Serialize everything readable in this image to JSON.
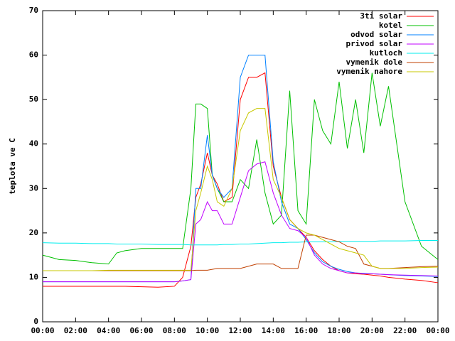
{
  "chart_data": {
    "type": "line",
    "ylabel": "teplota ve C",
    "x": [
      0,
      1,
      2,
      3,
      4,
      4.5,
      5,
      6,
      7,
      8,
      8.5,
      9,
      9.3,
      9.6,
      10,
      10.3,
      10.6,
      11,
      11.5,
      12,
      12.5,
      13,
      13.5,
      14,
      14.5,
      15,
      15.5,
      16,
      16.5,
      17,
      17.5,
      18,
      18.5,
      19,
      19.5,
      20,
      20.5,
      21,
      22,
      23,
      24
    ],
    "xlim": [
      0,
      24
    ],
    "xticks": [
      {
        "value": 0,
        "label": "00:00"
      },
      {
        "value": 2,
        "label": "02:00"
      },
      {
        "value": 4,
        "label": "04:00"
      },
      {
        "value": 6,
        "label": "06:00"
      },
      {
        "value": 8,
        "label": "08:00"
      },
      {
        "value": 10,
        "label": "10:00"
      },
      {
        "value": 12,
        "label": "12:00"
      },
      {
        "value": 14,
        "label": "14:00"
      },
      {
        "value": 16,
        "label": "16:00"
      },
      {
        "value": 18,
        "label": "18:00"
      },
      {
        "value": 20,
        "label": "20:00"
      },
      {
        "value": 22,
        "label": "22:00"
      },
      {
        "value": 24,
        "label": "00:00"
      }
    ],
    "ylim": [
      0,
      70
    ],
    "yticks": [
      0,
      10,
      20,
      30,
      40,
      50,
      60,
      70
    ],
    "legend": "top-right",
    "series": [
      {
        "name": "3ti solar",
        "color": "#ff0000",
        "values": [
          8,
          8,
          8,
          8,
          8,
          8,
          8,
          7.9,
          7.8,
          8,
          10,
          17,
          28,
          31,
          38,
          33,
          31,
          27,
          28,
          50,
          55,
          55,
          56,
          35,
          28,
          23,
          21,
          19,
          16,
          14,
          12.5,
          11.5,
          11,
          10.8,
          10.7,
          10.5,
          10.3,
          10,
          9.6,
          9.3,
          8.8
        ]
      },
      {
        "name": "kotel",
        "color": "#00c000",
        "values": [
          15,
          14,
          13.8,
          13.3,
          13,
          15.5,
          16,
          16.5,
          16.5,
          16.5,
          16.5,
          30,
          49,
          49,
          48,
          33,
          30,
          27,
          27,
          32,
          30,
          41,
          29,
          22,
          24,
          52,
          25,
          22,
          50,
          43,
          40,
          54,
          39,
          50,
          38,
          56,
          44,
          53,
          27,
          17,
          14
        ]
      },
      {
        "name": "odvod solar",
        "color": "#0080ff",
        "values": [
          9,
          9,
          9,
          9,
          9,
          9,
          9,
          9,
          9,
          9,
          9.2,
          9.5,
          30,
          30,
          42,
          33,
          30,
          28,
          30,
          55,
          60,
          60,
          60,
          36,
          27,
          22,
          21,
          18.5,
          15.5,
          13.5,
          12.5,
          11.8,
          11.3,
          11,
          10.9,
          10.8,
          10.7,
          10.6,
          10.4,
          10.3,
          10.2
        ]
      },
      {
        "name": "privod solar",
        "color": "#c000ff",
        "values": [
          9,
          9,
          9,
          9,
          9,
          9,
          9,
          9,
          9,
          9,
          9.2,
          9.5,
          22,
          23,
          27,
          25,
          25,
          22,
          22,
          28,
          34,
          35.5,
          36,
          29,
          24,
          21,
          20.5,
          19,
          15,
          13,
          12,
          11.5,
          11,
          11,
          10.8,
          10.8,
          10.7,
          10.6,
          10.5,
          10.4,
          10.3
        ]
      },
      {
        "name": "kutloch",
        "color": "#00eeee",
        "values": [
          17.8,
          17.7,
          17.7,
          17.6,
          17.6,
          17.5,
          17.5,
          17.5,
          17.4,
          17.4,
          17.4,
          17.3,
          17.3,
          17.3,
          17.3,
          17.3,
          17.3,
          17.4,
          17.4,
          17.5,
          17.5,
          17.6,
          17.7,
          17.8,
          17.8,
          17.9,
          17.9,
          18,
          18,
          18,
          18,
          18.1,
          18.1,
          18.1,
          18.1,
          18.1,
          18.2,
          18.2,
          18.2,
          18.3,
          18.3
        ]
      },
      {
        "name": "vymenik dole",
        "color": "#c04000",
        "values": [
          11.5,
          11.5,
          11.5,
          11.5,
          11.5,
          11.5,
          11.5,
          11.5,
          11.5,
          11.5,
          11.5,
          11.5,
          11.6,
          11.6,
          11.6,
          11.8,
          12,
          12,
          12,
          12,
          12.5,
          13,
          13,
          13,
          12,
          12,
          12,
          19.5,
          19.5,
          19,
          18.5,
          18,
          17,
          16.5,
          13,
          12.5,
          12,
          12,
          12.2,
          12.4,
          12.5
        ]
      },
      {
        "name": "vymenik nahore",
        "color": "#c8c800",
        "values": [
          11.5,
          11.5,
          11.5,
          11.5,
          11.6,
          11.6,
          11.6,
          11.6,
          11.6,
          11.6,
          11.6,
          11.6,
          25,
          29,
          35,
          32,
          27,
          26,
          30,
          43,
          47,
          48,
          48,
          32,
          28,
          23,
          21,
          20,
          19.5,
          18.5,
          17.5,
          16.5,
          16,
          15.5,
          15,
          12.5,
          12,
          12,
          12,
          12.2,
          12.3
        ]
      }
    ]
  }
}
